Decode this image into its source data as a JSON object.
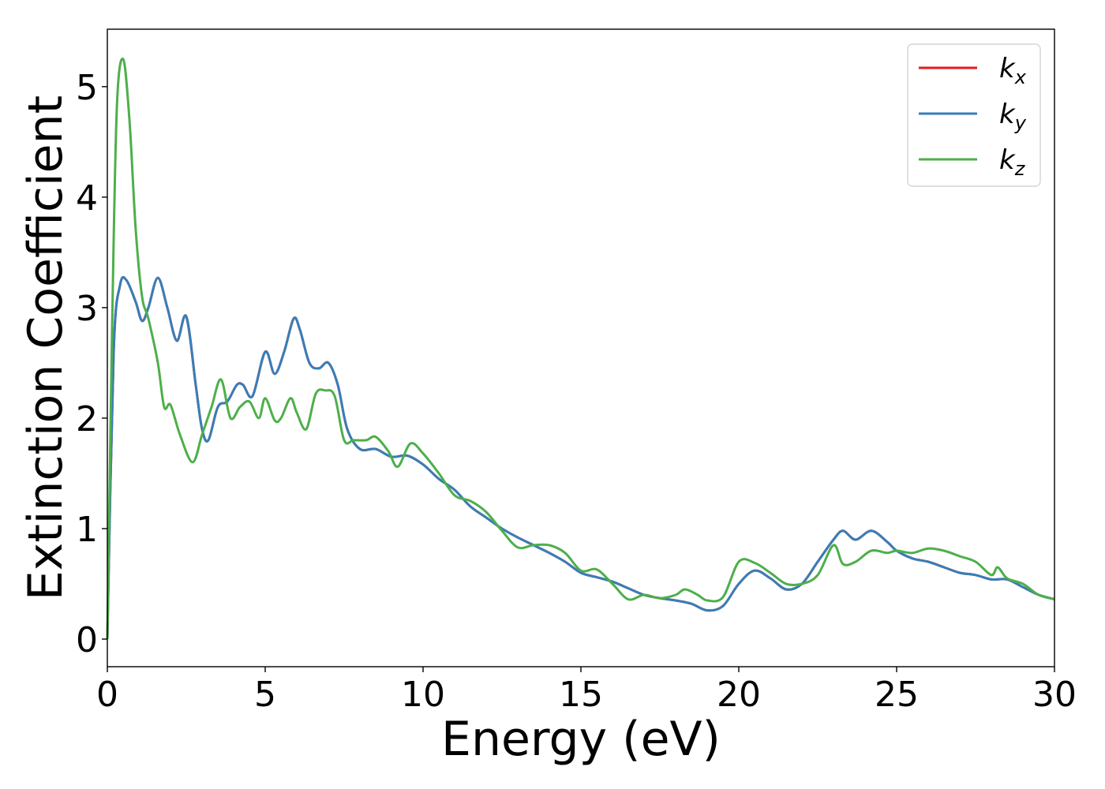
{
  "chart_data": {
    "type": "line",
    "xlabel": "Energy (eV)",
    "ylabel": "Extinction Coefficient",
    "xlim": [
      0,
      30
    ],
    "ylim": [
      -0.25,
      5.52
    ],
    "xticks": [
      "0",
      "5",
      "10",
      "15",
      "20",
      "25",
      "30"
    ],
    "yticks": [
      "0",
      "1",
      "2",
      "3",
      "4",
      "5"
    ],
    "grid": false,
    "legend_position": "top-right",
    "series": [
      {
        "name": "k_x",
        "label_base": "k",
        "label_sub": "x",
        "color": "#e41a1c",
        "x": [
          0,
          0.2,
          0.4,
          0.6,
          0.9,
          1.1,
          1.3,
          1.6,
          1.9,
          2.2,
          2.5,
          2.8,
          3.0,
          3.2,
          3.5,
          3.8,
          4.1,
          4.3,
          4.6,
          5.0,
          5.3,
          5.6,
          5.9,
          6.1,
          6.4,
          6.7,
          7.0,
          7.3,
          7.6,
          8.0,
          8.5,
          9.0,
          9.5,
          10.0,
          10.5,
          11.0,
          11.5,
          12.0,
          12.5,
          13.0,
          13.5,
          14.0,
          14.5,
          15.0,
          15.5,
          16.0,
          16.5,
          17.0,
          17.5,
          18.0,
          18.5,
          19.0,
          19.5,
          20.0,
          20.5,
          21.0,
          21.5,
          22.0,
          22.5,
          23.0,
          23.3,
          23.7,
          24.2,
          24.7,
          25.0,
          25.5,
          26.0,
          26.5,
          27.0,
          27.5,
          28.0,
          28.5,
          29.0,
          29.5,
          30.0
        ],
        "y": [
          0,
          2.6,
          3.2,
          3.25,
          3.05,
          2.88,
          3.0,
          3.27,
          3.0,
          2.7,
          2.92,
          2.3,
          1.9,
          1.8,
          2.1,
          2.15,
          2.3,
          2.3,
          2.2,
          2.6,
          2.4,
          2.6,
          2.9,
          2.8,
          2.5,
          2.45,
          2.5,
          2.3,
          1.9,
          1.72,
          1.72,
          1.65,
          1.66,
          1.58,
          1.45,
          1.35,
          1.2,
          1.1,
          1.0,
          0.92,
          0.85,
          0.78,
          0.7,
          0.6,
          0.56,
          0.52,
          0.46,
          0.4,
          0.37,
          0.35,
          0.32,
          0.26,
          0.3,
          0.5,
          0.62,
          0.55,
          0.45,
          0.5,
          0.7,
          0.9,
          0.98,
          0.9,
          0.98,
          0.88,
          0.8,
          0.73,
          0.7,
          0.65,
          0.6,
          0.58,
          0.54,
          0.54,
          0.47,
          0.4,
          0.36
        ]
      },
      {
        "name": "k_y",
        "label_base": "k",
        "label_sub": "y",
        "color": "#377eb8",
        "x": [
          0,
          0.2,
          0.4,
          0.6,
          0.9,
          1.1,
          1.3,
          1.6,
          1.9,
          2.2,
          2.5,
          2.8,
          3.0,
          3.2,
          3.5,
          3.8,
          4.1,
          4.3,
          4.6,
          5.0,
          5.3,
          5.6,
          5.9,
          6.1,
          6.4,
          6.7,
          7.0,
          7.3,
          7.6,
          8.0,
          8.5,
          9.0,
          9.5,
          10.0,
          10.5,
          11.0,
          11.5,
          12.0,
          12.5,
          13.0,
          13.5,
          14.0,
          14.5,
          15.0,
          15.5,
          16.0,
          16.5,
          17.0,
          17.5,
          18.0,
          18.5,
          19.0,
          19.5,
          20.0,
          20.5,
          21.0,
          21.5,
          22.0,
          22.5,
          23.0,
          23.3,
          23.7,
          24.2,
          24.7,
          25.0,
          25.5,
          26.0,
          26.5,
          27.0,
          27.5,
          28.0,
          28.5,
          29.0,
          29.5,
          30.0
        ],
        "y": [
          0,
          2.6,
          3.2,
          3.25,
          3.05,
          2.88,
          3.0,
          3.27,
          3.0,
          2.7,
          2.92,
          2.3,
          1.9,
          1.8,
          2.1,
          2.15,
          2.3,
          2.3,
          2.2,
          2.6,
          2.4,
          2.6,
          2.9,
          2.8,
          2.5,
          2.45,
          2.5,
          2.3,
          1.9,
          1.72,
          1.72,
          1.65,
          1.66,
          1.58,
          1.45,
          1.35,
          1.2,
          1.1,
          1.0,
          0.92,
          0.85,
          0.78,
          0.7,
          0.6,
          0.56,
          0.52,
          0.46,
          0.4,
          0.37,
          0.35,
          0.32,
          0.26,
          0.3,
          0.5,
          0.62,
          0.55,
          0.45,
          0.5,
          0.7,
          0.9,
          0.98,
          0.9,
          0.98,
          0.88,
          0.8,
          0.73,
          0.7,
          0.65,
          0.6,
          0.58,
          0.54,
          0.54,
          0.47,
          0.4,
          0.36
        ]
      },
      {
        "name": "k_z",
        "label_base": "k",
        "label_sub": "z",
        "color": "#4daf4a",
        "x": [
          0,
          0.15,
          0.3,
          0.5,
          0.7,
          0.9,
          1.1,
          1.3,
          1.6,
          1.8,
          2.0,
          2.3,
          2.7,
          3.0,
          3.3,
          3.6,
          3.9,
          4.2,
          4.5,
          4.8,
          5.0,
          5.3,
          5.5,
          5.8,
          6.0,
          6.3,
          6.6,
          6.9,
          7.2,
          7.5,
          7.8,
          8.2,
          8.5,
          8.9,
          9.2,
          9.6,
          10.0,
          10.5,
          11.0,
          11.5,
          12.0,
          12.5,
          13.0,
          13.5,
          14.0,
          14.5,
          15.0,
          15.5,
          16.0,
          16.5,
          17.0,
          17.5,
          18.0,
          18.3,
          18.7,
          19.0,
          19.5,
          20.0,
          20.5,
          21.0,
          21.5,
          22.0,
          22.5,
          23.0,
          23.3,
          23.7,
          24.2,
          24.7,
          25.0,
          25.5,
          26.0,
          26.5,
          27.0,
          27.5,
          28.0,
          28.2,
          28.5,
          29.0,
          29.5,
          30.0
        ],
        "y": [
          0,
          2.8,
          4.8,
          5.25,
          4.7,
          3.7,
          3.1,
          2.9,
          2.5,
          2.1,
          2.12,
          1.85,
          1.6,
          1.85,
          2.1,
          2.35,
          2.0,
          2.1,
          2.15,
          2.0,
          2.18,
          1.98,
          2.0,
          2.18,
          2.05,
          1.9,
          2.22,
          2.25,
          2.2,
          1.8,
          1.8,
          1.8,
          1.83,
          1.7,
          1.56,
          1.77,
          1.68,
          1.5,
          1.3,
          1.25,
          1.15,
          0.98,
          0.83,
          0.85,
          0.85,
          0.78,
          0.62,
          0.63,
          0.5,
          0.36,
          0.4,
          0.37,
          0.4,
          0.45,
          0.4,
          0.35,
          0.38,
          0.7,
          0.69,
          0.6,
          0.5,
          0.5,
          0.58,
          0.85,
          0.68,
          0.7,
          0.8,
          0.78,
          0.8,
          0.78,
          0.82,
          0.8,
          0.75,
          0.7,
          0.58,
          0.65,
          0.55,
          0.5,
          0.4,
          0.36
        ]
      }
    ]
  }
}
